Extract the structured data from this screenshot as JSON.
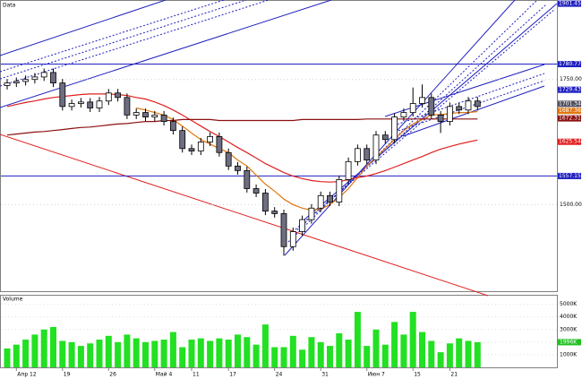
{
  "chart_data": {
    "type": "candlestick",
    "panel_label": "Data",
    "categories": [
      null,
      "Апр 12",
      null,
      null,
      null,
      null,
      "19",
      null,
      null,
      null,
      null,
      "26",
      null,
      null,
      null,
      null,
      "Май 4",
      null,
      null,
      null,
      "11",
      null,
      null,
      null,
      "17",
      null,
      null,
      null,
      null,
      "24",
      null,
      null,
      null,
      null,
      "31",
      null,
      null,
      null,
      null,
      "Июн 7",
      null,
      null,
      null,
      null,
      "15",
      null,
      null,
      null,
      "21",
      null,
      null,
      null
    ],
    "open": [
      1738,
      1743,
      1746,
      1750,
      1755,
      1764,
      1743,
      1696,
      1702,
      1705,
      1693,
      1707,
      1723,
      1714,
      1679,
      1684,
      1675,
      1679,
      1666,
      1648,
      1612,
      1607,
      1625,
      1636,
      1604,
      1577,
      1568,
      1532,
      1523,
      1487,
      1482,
      1416,
      1446,
      1470,
      1493,
      1518,
      1505,
      1550,
      1586,
      1612,
      1589,
      1639,
      1630,
      1675,
      1684,
      1702,
      1714,
      1679,
      1666,
      1696,
      1689,
      1707
    ],
    "high": [
      1751,
      1754,
      1758,
      1763,
      1772,
      1772,
      1751,
      1710,
      1713,
      1713,
      1715,
      1731,
      1731,
      1722,
      1692,
      1692,
      1687,
      1687,
      1674,
      1656,
      1620,
      1633,
      1644,
      1644,
      1612,
      1585,
      1576,
      1540,
      1531,
      1495,
      1490,
      1454,
      1478,
      1501,
      1526,
      1526,
      1558,
      1594,
      1620,
      1620,
      1647,
      1647,
      1683,
      1692,
      1734,
      1740,
      1722,
      1687,
      1704,
      1704,
      1715,
      1715
    ],
    "low": [
      1730,
      1735,
      1738,
      1742,
      1747,
      1735,
      1688,
      1688,
      1694,
      1685,
      1685,
      1699,
      1706,
      1671,
      1671,
      1667,
      1667,
      1658,
      1640,
      1604,
      1599,
      1599,
      1617,
      1596,
      1569,
      1560,
      1524,
      1515,
      1479,
      1474,
      1398,
      1408,
      1438,
      1462,
      1485,
      1497,
      1497,
      1542,
      1578,
      1581,
      1581,
      1622,
      1622,
      1667,
      1676,
      1694,
      1671,
      1643,
      1658,
      1681,
      1681,
      1688
    ],
    "close": [
      1743,
      1746,
      1750,
      1755,
      1764,
      1743,
      1696,
      1702,
      1705,
      1693,
      1707,
      1723,
      1714,
      1679,
      1684,
      1675,
      1679,
      1666,
      1648,
      1612,
      1607,
      1625,
      1636,
      1604,
      1577,
      1568,
      1532,
      1523,
      1487,
      1482,
      1416,
      1446,
      1470,
      1493,
      1518,
      1505,
      1550,
      1586,
      1612,
      1589,
      1639,
      1630,
      1675,
      1684,
      1702,
      1714,
      1679,
      1666,
      1696,
      1689,
      1707,
      1696
    ],
    "up_color": "#ffffff",
    "down_color": "#6e6e82",
    "ylim": [
      1327,
      1907
    ],
    "yticks": [
      {
        "value": 1750,
        "label": "1750.00"
      },
      {
        "value": 1500,
        "label": "1500.00"
      }
    ],
    "price_tags": [
      {
        "value": 1901.45,
        "label": "1901.45",
        "color": "#2020c0"
      },
      {
        "value": 1780.77,
        "label": "1780.77",
        "color": "#2020c0",
        "line": true
      },
      {
        "value": 1729.43,
        "label": "1729.43",
        "color": "#2020c0"
      },
      {
        "value": 1701.34,
        "label": "1701.34",
        "color": "#505060"
      },
      {
        "value": 1687.36,
        "label": "1687.36",
        "color": "#e07810"
      },
      {
        "value": 1672.31,
        "label": "1672.31",
        "color": "#8b1010"
      },
      {
        "value": 1625.54,
        "label": "1625.54",
        "color": "#e02020"
      },
      {
        "value": 1557.15,
        "label": "1557.15",
        "color": "#2020c0",
        "line": true
      }
    ],
    "lines": [
      {
        "color": "#e07810",
        "values": [
          null,
          null,
          null,
          null,
          null,
          null,
          null,
          null,
          null,
          null,
          null,
          null,
          null,
          null,
          1693,
          1689,
          1684,
          1679,
          1670,
          1657,
          1643,
          1630,
          1621,
          1612,
          1604,
          1589,
          1577,
          1559,
          1541,
          1527,
          1511,
          1500,
          1493,
          1489,
          1491,
          1500,
          1514,
          1532,
          1554,
          1577,
          1595,
          1612,
          1630,
          1648,
          1661,
          1670,
          1679,
          1680,
          1682,
          1684,
          1684,
          1686
        ]
      },
      {
        "color": "#e02020",
        "values": [
          1696,
          1700,
          1704,
          1707,
          1711,
          1714,
          1716,
          1718,
          1720,
          1721,
          1721,
          1721,
          1720,
          1718,
          1714,
          1711,
          1705,
          1698,
          1689,
          1679,
          1668,
          1657,
          1646,
          1636,
          1625,
          1614,
          1604,
          1593,
          1582,
          1573,
          1564,
          1557,
          1552,
          1548,
          1546,
          1545,
          1546,
          1550,
          1554,
          1557,
          1562,
          1568,
          1575,
          1582,
          1589,
          1596,
          1604,
          1611,
          1616,
          1621,
          1625,
          1629
        ]
      },
      {
        "color": "#8b1010",
        "values": [
          1639,
          1641,
          1643,
          1645,
          1646,
          1648,
          1650,
          1652,
          1654,
          1655,
          1657,
          1659,
          1661,
          1662,
          1664,
          1666,
          1666,
          1668,
          1668,
          1670,
          1670,
          1670,
          1670,
          1668,
          1668,
          1668,
          1668,
          1668,
          1668,
          1668,
          1668,
          1668,
          1670,
          1670,
          1670,
          1670,
          1670,
          1670,
          1670,
          1671,
          1671,
          1671,
          1671,
          1671,
          1671,
          1671,
          1671,
          1671,
          1671,
          1671,
          1671,
          1671
        ]
      }
    ],
    "volume": {
      "label": "Volume",
      "color": "#22e022",
      "values": [
        1500,
        1800,
        2200,
        2600,
        3000,
        3200,
        2100,
        2000,
        1700,
        1900,
        2200,
        2500,
        2000,
        2600,
        2300,
        2000,
        2100,
        2200,
        2800,
        1600,
        2200,
        2300,
        2100,
        2300,
        2200,
        2600,
        2400,
        1800,
        3400,
        1600,
        1600,
        2500,
        1400,
        2400,
        2000,
        1700,
        2700,
        2200,
        4400,
        1700,
        3000,
        1800,
        3600,
        2600,
        4400,
        2800,
        2100,
        1200,
        1900,
        2300,
        2100,
        1996
      ],
      "ylim": [
        0,
        5400
      ],
      "yticks": [
        {
          "value": 1000,
          "label": "1000K"
        },
        {
          "value": 2000,
          "label": "2000K"
        },
        {
          "value": 3000,
          "label": "3000K"
        },
        {
          "value": 4000,
          "label": "4000K"
        },
        {
          "value": 5000,
          "label": "5000K"
        }
      ],
      "tag": {
        "value": 1996,
        "label": "1996K",
        "color": "#22c022"
      }
    }
  }
}
